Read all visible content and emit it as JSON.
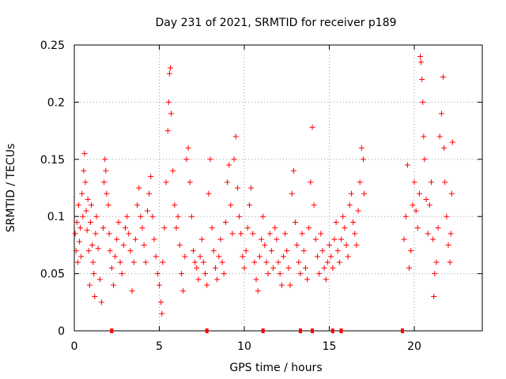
{
  "chart_data": {
    "type": "scatter",
    "title": "Day 231 of 2021, SRMTID for receiver p189",
    "xlabel": "GPS time / hours",
    "ylabel": "SRMTID / TECUs",
    "xlim": [
      0,
      24
    ],
    "ylim": [
      0,
      0.25
    ],
    "xticks": [
      "0",
      "5",
      "10",
      "15",
      "20"
    ],
    "yticks": [
      "0",
      "0.05",
      "0.1",
      "0.15",
      "0.2",
      "0.25"
    ],
    "grid": true,
    "marker": "+",
    "color": "#ff0000",
    "series": [
      {
        "name": "SRMTID",
        "points": [
          [
            0.05,
            0.085
          ],
          [
            0.1,
            0.07
          ],
          [
            0.15,
            0.095
          ],
          [
            0.2,
            0.06
          ],
          [
            0.25,
            0.11
          ],
          [
            0.3,
            0.078
          ],
          [
            0.35,
            0.09
          ],
          [
            0.4,
            0.065
          ],
          [
            0.45,
            0.12
          ],
          [
            0.5,
            0.1
          ],
          [
            0.55,
            0.14
          ],
          [
            0.6,
            0.155
          ],
          [
            0.65,
            0.13
          ],
          [
            0.7,
            0.105
          ],
          [
            0.75,
            0.088
          ],
          [
            0.8,
            0.115
          ],
          [
            0.85,
            0.07
          ],
          [
            0.9,
            0.04
          ],
          [
            0.95,
            0.095
          ],
          [
            1.0,
            0.11
          ],
          [
            1.05,
            0.075
          ],
          [
            1.1,
            0.06
          ],
          [
            1.15,
            0.05
          ],
          [
            1.2,
            0.03
          ],
          [
            1.25,
            0.085
          ],
          [
            1.3,
            0.1
          ],
          [
            1.4,
            0.072
          ],
          [
            1.5,
            0.045
          ],
          [
            1.6,
            0.025
          ],
          [
            1.7,
            0.09
          ],
          [
            1.75,
            0.13
          ],
          [
            1.8,
            0.15
          ],
          [
            1.85,
            0.14
          ],
          [
            1.9,
            0.12
          ],
          [
            2.0,
            0.11
          ],
          [
            2.05,
            0.085
          ],
          [
            2.1,
            0.07
          ],
          [
            2.2,
            0.055
          ],
          [
            2.3,
            0.04
          ],
          [
            2.4,
            0.065
          ],
          [
            2.5,
            0.08
          ],
          [
            2.6,
            0.095
          ],
          [
            2.7,
            0.06
          ],
          [
            2.8,
            0.05
          ],
          [
            2.9,
            0.075
          ],
          [
            3.0,
            0.09
          ],
          [
            3.1,
            0.1
          ],
          [
            3.2,
            0.085
          ],
          [
            3.3,
            0.07
          ],
          [
            3.4,
            0.035
          ],
          [
            3.5,
            0.06
          ],
          [
            3.6,
            0.08
          ],
          [
            3.7,
            0.11
          ],
          [
            3.8,
            0.125
          ],
          [
            3.9,
            0.1
          ],
          [
            4.0,
            0.09
          ],
          [
            4.1,
            0.075
          ],
          [
            4.2,
            0.06
          ],
          [
            4.3,
            0.105
          ],
          [
            4.4,
            0.12
          ],
          [
            4.5,
            0.135
          ],
          [
            4.6,
            0.1
          ],
          [
            4.7,
            0.08
          ],
          [
            4.8,
            0.065
          ],
          [
            4.9,
            0.05
          ],
          [
            5.0,
            0.04
          ],
          [
            5.1,
            0.025
          ],
          [
            5.15,
            0.015
          ],
          [
            5.2,
            0.06
          ],
          [
            5.3,
            0.09
          ],
          [
            5.4,
            0.13
          ],
          [
            5.5,
            0.175
          ],
          [
            5.55,
            0.2
          ],
          [
            5.6,
            0.225
          ],
          [
            5.65,
            0.23
          ],
          [
            5.7,
            0.19
          ],
          [
            5.8,
            0.14
          ],
          [
            5.9,
            0.11
          ],
          [
            6.0,
            0.09
          ],
          [
            6.1,
            0.1
          ],
          [
            6.2,
            0.075
          ],
          [
            6.3,
            0.05
          ],
          [
            6.4,
            0.035
          ],
          [
            6.5,
            0.065
          ],
          [
            6.6,
            0.15
          ],
          [
            6.7,
            0.16
          ],
          [
            6.8,
            0.13
          ],
          [
            6.9,
            0.1
          ],
          [
            7.0,
            0.07
          ],
          [
            7.1,
            0.06
          ],
          [
            7.2,
            0.055
          ],
          [
            7.3,
            0.045
          ],
          [
            7.4,
            0.065
          ],
          [
            7.5,
            0.08
          ],
          [
            7.6,
            0.06
          ],
          [
            7.7,
            0.05
          ],
          [
            7.8,
            0.04
          ],
          [
            7.9,
            0.12
          ],
          [
            8.0,
            0.15
          ],
          [
            8.1,
            0.09
          ],
          [
            8.2,
            0.07
          ],
          [
            8.3,
            0.055
          ],
          [
            8.4,
            0.045
          ],
          [
            8.5,
            0.065
          ],
          [
            8.6,
            0.08
          ],
          [
            8.7,
            0.06
          ],
          [
            8.8,
            0.05
          ],
          [
            8.9,
            0.095
          ],
          [
            9.0,
            0.13
          ],
          [
            9.1,
            0.145
          ],
          [
            9.2,
            0.11
          ],
          [
            9.3,
            0.085
          ],
          [
            9.4,
            0.15
          ],
          [
            9.5,
            0.17
          ],
          [
            9.6,
            0.125
          ],
          [
            9.7,
            0.1
          ],
          [
            9.8,
            0.085
          ],
          [
            9.9,
            0.065
          ],
          [
            10.0,
            0.055
          ],
          [
            10.1,
            0.07
          ],
          [
            10.2,
            0.09
          ],
          [
            10.3,
            0.11
          ],
          [
            10.4,
            0.125
          ],
          [
            10.5,
            0.085
          ],
          [
            10.6,
            0.06
          ],
          [
            10.7,
            0.045
          ],
          [
            10.8,
            0.035
          ],
          [
            10.9,
            0.065
          ],
          [
            11.0,
            0.08
          ],
          [
            11.1,
            0.1
          ],
          [
            11.2,
            0.075
          ],
          [
            11.3,
            0.06
          ],
          [
            11.4,
            0.05
          ],
          [
            11.5,
            0.085
          ],
          [
            11.6,
            0.07
          ],
          [
            11.7,
            0.055
          ],
          [
            11.8,
            0.09
          ],
          [
            11.9,
            0.08
          ],
          [
            12.0,
            0.06
          ],
          [
            12.1,
            0.05
          ],
          [
            12.2,
            0.04
          ],
          [
            12.3,
            0.065
          ],
          [
            12.4,
            0.085
          ],
          [
            12.5,
            0.07
          ],
          [
            12.6,
            0.055
          ],
          [
            12.7,
            0.04
          ],
          [
            12.8,
            0.12
          ],
          [
            12.9,
            0.14
          ],
          [
            13.0,
            0.095
          ],
          [
            13.1,
            0.075
          ],
          [
            13.2,
            0.06
          ],
          [
            13.3,
            0.05
          ],
          [
            13.4,
            0.085
          ],
          [
            13.5,
            0.07
          ],
          [
            13.6,
            0.055
          ],
          [
            13.7,
            0.045
          ],
          [
            13.8,
            0.09
          ],
          [
            13.9,
            0.13
          ],
          [
            14.0,
            0.178
          ],
          [
            14.1,
            0.11
          ],
          [
            14.2,
            0.08
          ],
          [
            14.3,
            0.065
          ],
          [
            14.4,
            0.05
          ],
          [
            14.5,
            0.085
          ],
          [
            14.6,
            0.07
          ],
          [
            14.7,
            0.055
          ],
          [
            14.8,
            0.045
          ],
          [
            14.9,
            0.06
          ],
          [
            15.0,
            0.075
          ],
          [
            15.1,
            0.065
          ],
          [
            15.2,
            0.055
          ],
          [
            15.3,
            0.08
          ],
          [
            15.4,
            0.095
          ],
          [
            15.5,
            0.07
          ],
          [
            15.6,
            0.06
          ],
          [
            15.7,
            0.08
          ],
          [
            15.8,
            0.1
          ],
          [
            15.9,
            0.09
          ],
          [
            16.0,
            0.075
          ],
          [
            16.1,
            0.065
          ],
          [
            16.2,
            0.11
          ],
          [
            16.3,
            0.12
          ],
          [
            16.4,
            0.095
          ],
          [
            16.5,
            0.085
          ],
          [
            16.6,
            0.075
          ],
          [
            16.7,
            0.105
          ],
          [
            16.8,
            0.13
          ],
          [
            16.9,
            0.16
          ],
          [
            17.0,
            0.15
          ],
          [
            17.05,
            0.12
          ],
          [
            19.4,
            0.08
          ],
          [
            19.5,
            0.1
          ],
          [
            19.6,
            0.145
          ],
          [
            19.7,
            0.055
          ],
          [
            19.8,
            0.07
          ],
          [
            19.9,
            0.11
          ],
          [
            20.0,
            0.13
          ],
          [
            20.1,
            0.105
          ],
          [
            20.2,
            0.09
          ],
          [
            20.3,
            0.12
          ],
          [
            20.35,
            0.24
          ],
          [
            20.4,
            0.235
          ],
          [
            20.45,
            0.22
          ],
          [
            20.5,
            0.2
          ],
          [
            20.55,
            0.17
          ],
          [
            20.6,
            0.15
          ],
          [
            20.7,
            0.115
          ],
          [
            20.8,
            0.085
          ],
          [
            20.9,
            0.11
          ],
          [
            21.0,
            0.13
          ],
          [
            21.1,
            0.08
          ],
          [
            21.15,
            0.03
          ],
          [
            21.2,
            0.05
          ],
          [
            21.3,
            0.06
          ],
          [
            21.4,
            0.09
          ],
          [
            21.5,
            0.17
          ],
          [
            21.6,
            0.19
          ],
          [
            21.7,
            0.222
          ],
          [
            21.75,
            0.16
          ],
          [
            21.8,
            0.13
          ],
          [
            21.9,
            0.1
          ],
          [
            22.0,
            0.075
          ],
          [
            22.1,
            0.06
          ],
          [
            22.15,
            0.085
          ],
          [
            22.2,
            0.12
          ],
          [
            22.25,
            0.165
          ]
        ]
      },
      {
        "name": "zero-value markers",
        "points": [
          [
            2.2,
            0
          ],
          [
            7.8,
            0
          ],
          [
            11.1,
            0
          ],
          [
            13.3,
            0
          ],
          [
            14.0,
            0
          ],
          [
            15.2,
            0
          ],
          [
            15.7,
            0
          ],
          [
            19.3,
            0
          ]
        ]
      }
    ]
  }
}
